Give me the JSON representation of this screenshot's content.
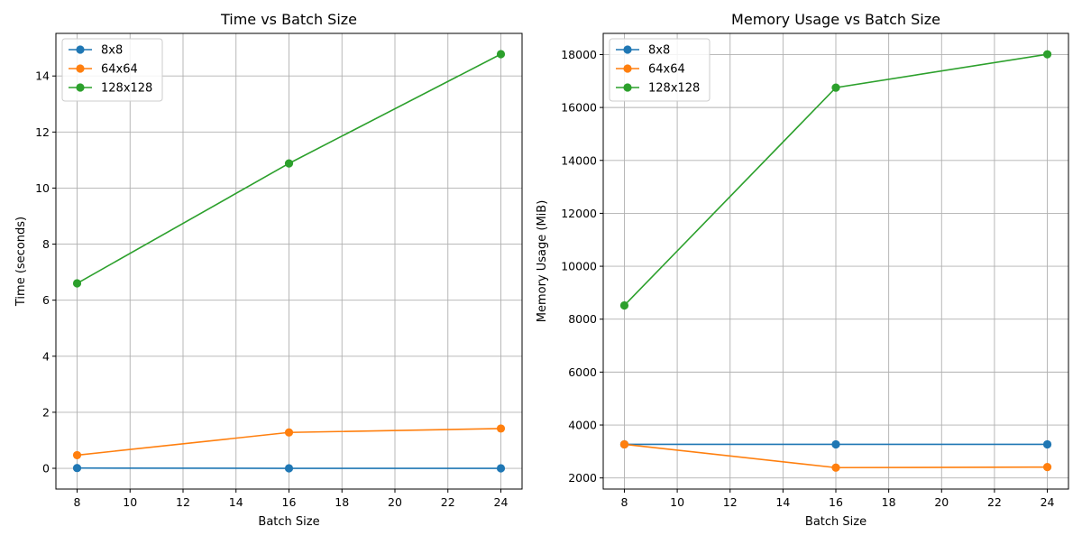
{
  "chart_data": [
    {
      "type": "line",
      "title": "Time vs Batch Size",
      "xlabel": "Batch Size",
      "ylabel": "Time (seconds)",
      "xlim": [
        7.2,
        24.8
      ],
      "ylim": [
        -0.74,
        15.52
      ],
      "xticks": [
        8,
        10,
        12,
        14,
        16,
        18,
        20,
        22,
        24
      ],
      "yticks": [
        0,
        2,
        4,
        6,
        8,
        10,
        12,
        14
      ],
      "grid": true,
      "legend_position": "upper-left",
      "x": [
        8,
        16,
        24
      ],
      "series": [
        {
          "name": "8x8",
          "color": "#1f77b4",
          "values": [
            0.01,
            0.0,
            0.0
          ]
        },
        {
          "name": "64x64",
          "color": "#ff7f0e",
          "values": [
            0.47,
            1.28,
            1.42
          ]
        },
        {
          "name": "128x128",
          "color": "#2ca02c",
          "values": [
            6.6,
            10.88,
            14.78
          ]
        }
      ]
    },
    {
      "type": "line",
      "title": "Memory Usage vs Batch Size",
      "xlabel": "Batch Size",
      "ylabel": "Memory Usage (MiB)",
      "xlim": [
        7.2,
        24.8
      ],
      "ylim": [
        1580,
        18800
      ],
      "xticks": [
        8,
        10,
        12,
        14,
        16,
        18,
        20,
        22,
        24
      ],
      "yticks": [
        2000,
        4000,
        6000,
        8000,
        10000,
        12000,
        14000,
        16000,
        18000
      ],
      "grid": true,
      "legend_position": "upper-left",
      "x": [
        8,
        16,
        24
      ],
      "series": [
        {
          "name": "8x8",
          "color": "#1f77b4",
          "values": [
            3270,
            3270,
            3270
          ]
        },
        {
          "name": "64x64",
          "color": "#ff7f0e",
          "values": [
            3270,
            2390,
            2410
          ]
        },
        {
          "name": "128x128",
          "color": "#2ca02c",
          "values": [
            8520,
            16750,
            18010
          ]
        }
      ]
    }
  ]
}
